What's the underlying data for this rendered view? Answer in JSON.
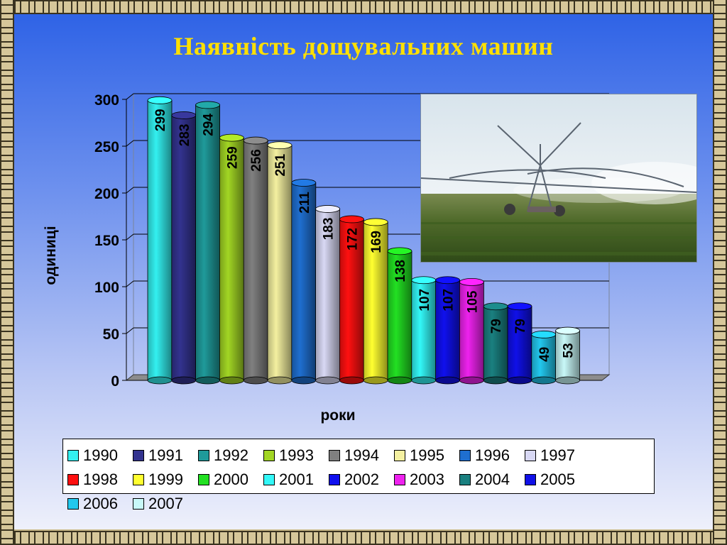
{
  "title": "Наявність дощувальних машин",
  "chart_data": {
    "type": "bar",
    "title": "Наявність дощувальних машин",
    "xlabel": "роки",
    "ylabel": "одиниці",
    "ylim": [
      0,
      300
    ],
    "yticks": [
      0,
      50,
      100,
      150,
      200,
      250,
      300
    ],
    "grid": true,
    "legend_position": "bottom",
    "categories": [
      "1990",
      "1991",
      "1992",
      "1993",
      "1994",
      "1995",
      "1996",
      "1997",
      "1998",
      "1999",
      "2000",
      "2001",
      "2002",
      "2003",
      "2004",
      "2005",
      "2006",
      "2007"
    ],
    "values": [
      299,
      283,
      294,
      259,
      256,
      251,
      211,
      183,
      172,
      169,
      138,
      107,
      107,
      105,
      79,
      79,
      49,
      53
    ],
    "colors": [
      "#33f0f0",
      "#33338f",
      "#1f9a9a",
      "#a2d624",
      "#808080",
      "#f4f0a0",
      "#1f6fd0",
      "#d8d8f4",
      "#ff1010",
      "#ffff30",
      "#22e022",
      "#33f8f8",
      "#1010ee",
      "#ee22ee",
      "#1a8080",
      "#1010e8",
      "#22c8ee",
      "#c8f8f8"
    ]
  }
}
